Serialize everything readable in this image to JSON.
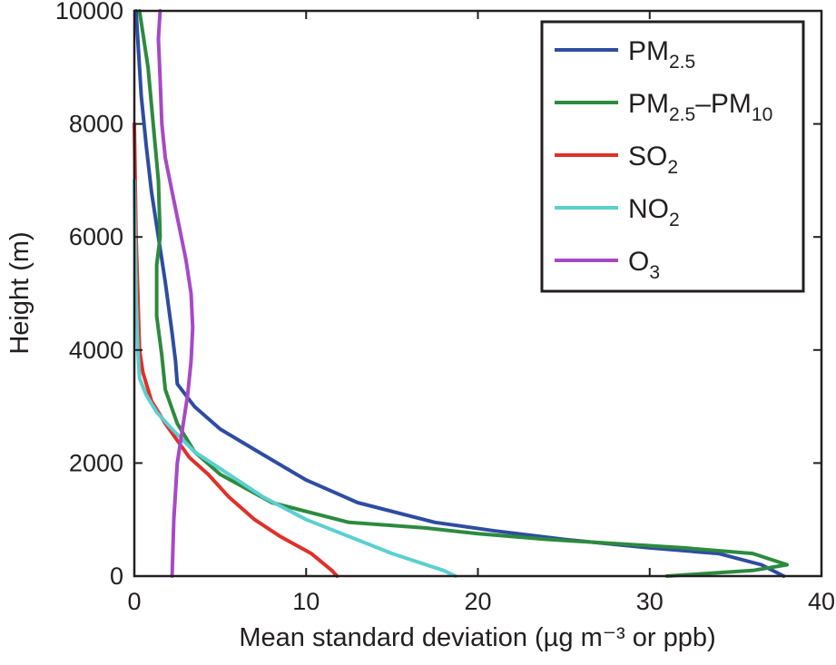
{
  "chart_data": {
    "type": "line",
    "xlabel": "Mean standard deviation (µg m⁻³ or ppb)",
    "ylabel": "Height (m)",
    "xlim": [
      0,
      40
    ],
    "ylim": [
      0,
      10000
    ],
    "xticks": [
      0,
      10,
      20,
      30,
      40
    ],
    "yticks": [
      0,
      2000,
      4000,
      6000,
      8000,
      10000
    ],
    "grid": false,
    "legend_position": "top-right",
    "series": [
      {
        "name": "PM2.5",
        "legend": {
          "base": "PM",
          "sub": "2.5"
        },
        "color": "#2e4da1",
        "x": [
          37.8,
          36.5,
          34,
          30,
          25,
          21,
          17.5,
          13,
          10,
          7.2,
          5,
          3.5,
          2.5,
          2.4,
          2.2,
          1.8,
          1.4,
          1.0,
          0.7,
          0.4,
          0.1
        ],
        "y": [
          0,
          200,
          400,
          500,
          650,
          800,
          950,
          1300,
          1700,
          2200,
          2600,
          3000,
          3400,
          3800,
          4300,
          5200,
          6000,
          6800,
          7600,
          8500,
          10000
        ]
      },
      {
        "name": "PM2.5-PM10",
        "legend": {
          "base": "PM",
          "sub": "2.5",
          "mid": "–PM",
          "sub2": "10"
        },
        "color": "#2d8a3e",
        "x": [
          31,
          36,
          38,
          36,
          32,
          24,
          20,
          17,
          12.5,
          8,
          5,
          3.5,
          2.5,
          1.8,
          1.6,
          1.3,
          1.3,
          1.5,
          1.4,
          1.1,
          0.8,
          0.3
        ],
        "y": [
          0,
          100,
          200,
          400,
          500,
          650,
          750,
          850,
          950,
          1300,
          1800,
          2200,
          2700,
          3300,
          3900,
          4600,
          5500,
          6000,
          7000,
          8000,
          9000,
          10000
        ]
      },
      {
        "name": "SO2",
        "legend": {
          "base": "SO",
          "sub": "2"
        },
        "color": "#e0302a",
        "x": [
          11.8,
          11.5,
          10.3,
          8.5,
          7,
          5.5,
          4.3,
          3.2,
          2.5,
          1.8,
          1.0,
          0.5,
          0.3,
          0.2,
          0.1,
          0.05,
          0
        ],
        "y": [
          0,
          100,
          400,
          700,
          1000,
          1400,
          1800,
          2100,
          2400,
          2700,
          3100,
          3600,
          4000,
          5000,
          6000,
          7000,
          8000
        ]
      },
      {
        "name": "NO2",
        "legend": {
          "base": "NO",
          "sub": "2"
        },
        "color": "#5ccfcf",
        "x": [
          18.7,
          18,
          15,
          12.5,
          10,
          7.5,
          5.5,
          3.5,
          2.2,
          1.3,
          0.7,
          0.3,
          0.2,
          0.1,
          0.05,
          0
        ],
        "y": [
          0,
          100,
          400,
          700,
          1000,
          1400,
          1800,
          2200,
          2600,
          2900,
          3200,
          3500,
          4000,
          5000,
          6000,
          7000
        ]
      },
      {
        "name": "O3",
        "legend": {
          "base": "O",
          "sub": "3"
        },
        "color": "#a649c7",
        "x": [
          2.2,
          2.3,
          2.5,
          2.8,
          3.1,
          3.3,
          3.4,
          3.3,
          3.0,
          2.6,
          2.2,
          1.8,
          1.6,
          1.5,
          1.4,
          1.5
        ],
        "y": [
          0,
          1000,
          2000,
          2600,
          3200,
          3800,
          4400,
          5000,
          5600,
          6200,
          6800,
          7400,
          8000,
          8800,
          9500,
          10000
        ]
      }
    ]
  }
}
